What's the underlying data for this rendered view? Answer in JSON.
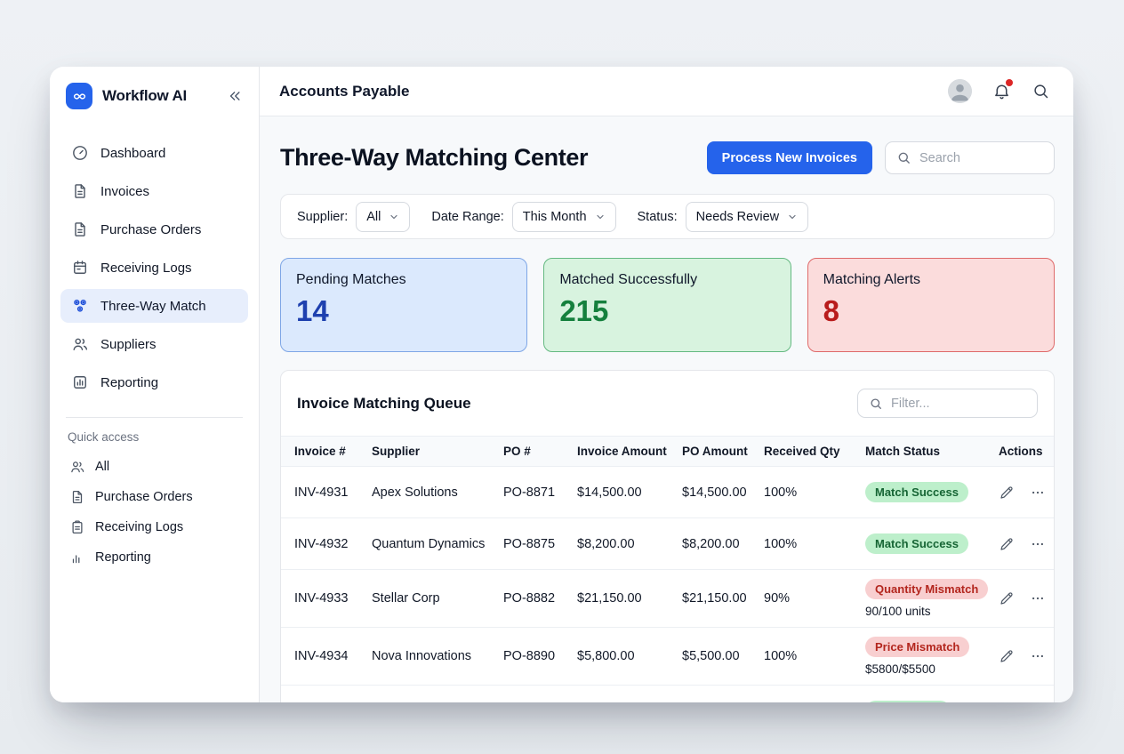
{
  "app": {
    "brand": "Workflow AI"
  },
  "sidebar": {
    "items": [
      {
        "label": "Dashboard",
        "icon": "gauge",
        "active": false
      },
      {
        "label": "Invoices",
        "icon": "file",
        "active": false
      },
      {
        "label": "Purchase Orders",
        "icon": "file",
        "active": false
      },
      {
        "label": "Receiving Logs",
        "icon": "calendar",
        "active": false
      },
      {
        "label": "Three-Way Match",
        "icon": "nodes",
        "active": true
      },
      {
        "label": "Suppliers",
        "icon": "users",
        "active": false
      },
      {
        "label": "Reporting",
        "icon": "chart",
        "active": false
      }
    ],
    "quick_access": {
      "label": "Quick access",
      "items": [
        {
          "label": "All",
          "icon": "users"
        },
        {
          "label": "Purchase Orders",
          "icon": "file"
        },
        {
          "label": "Receiving Logs",
          "icon": "clipboard"
        },
        {
          "label": "Reporting",
          "icon": "bars"
        }
      ]
    }
  },
  "topbar": {
    "title": "Accounts Payable"
  },
  "page": {
    "title": "Three-Way Matching Center",
    "primary_button": "Process New Invoices",
    "search_placeholder": "Search"
  },
  "filters": {
    "supplier_label": "Supplier:",
    "supplier_value": "All",
    "date_range_label": "Date Range:",
    "date_range_value": "This Month",
    "status_label": "Status:",
    "status_value": "Needs Review"
  },
  "stats": [
    {
      "label": "Pending Matches",
      "value": "14",
      "theme": "blue",
      "value_color": "#1e40af",
      "bg": "#dbe9fd"
    },
    {
      "label": "Matched Successfully",
      "value": "215",
      "theme": "green",
      "value_color": "#15803d",
      "bg": "#d8f3df"
    },
    {
      "label": "Matching Alerts",
      "value": "8",
      "theme": "red",
      "value_color": "#b91c1c",
      "bg": "#fbdcdc"
    }
  ],
  "queue": {
    "title": "Invoice Matching Queue",
    "filter_placeholder": "Filter...",
    "columns": [
      "Invoice #",
      "Supplier",
      "PO #",
      "Invoice Amount",
      "PO Amount",
      "Received Qty",
      "Match Status",
      "Actions"
    ],
    "rows": [
      {
        "invoice": "INV-4931",
        "supplier": "Apex Solutions",
        "po": "PO-8871",
        "invoice_amount": "$14,500.00",
        "po_amount": "$14,500.00",
        "received_qty": "100%",
        "status": "Match Success",
        "status_type": "success",
        "status_detail": ""
      },
      {
        "invoice": "INV-4932",
        "supplier": "Quantum Dynamics",
        "po": "PO-8875",
        "invoice_amount": "$8,200.00",
        "po_amount": "$8,200.00",
        "received_qty": "100%",
        "status": "Match Success",
        "status_type": "success",
        "status_detail": ""
      },
      {
        "invoice": "INV-4933",
        "supplier": "Stellar Corp",
        "po": "PO-8882",
        "invoice_amount": "$21,150.00",
        "po_amount": "$21,150.00",
        "received_qty": "90%",
        "status": "Quantity Mismatch",
        "status_type": "error",
        "status_detail": "90/100 units"
      },
      {
        "invoice": "INV-4934",
        "supplier": "Nova Innovations",
        "po": "PO-8890",
        "invoice_amount": "$5,800.00",
        "po_amount": "$5,500.00",
        "received_qty": "100%",
        "status": "Price Mismatch",
        "status_type": "error",
        "status_detail": "$5800/$5500"
      },
      {
        "invoice": "",
        "supplier": "",
        "po": "",
        "invoice_amount": "",
        "po_amount": "",
        "received_qty": "",
        "status": "",
        "status_type": "success",
        "status_detail": "",
        "partial": true
      }
    ]
  },
  "colors": {
    "accent_blue": "#2563eb",
    "success_badge_bg": "#bdefcb",
    "success_badge_text": "#166534",
    "error_badge_bg": "#f8cfd0",
    "error_badge_text": "#b3261e",
    "notification_dot": "#dc2626"
  }
}
